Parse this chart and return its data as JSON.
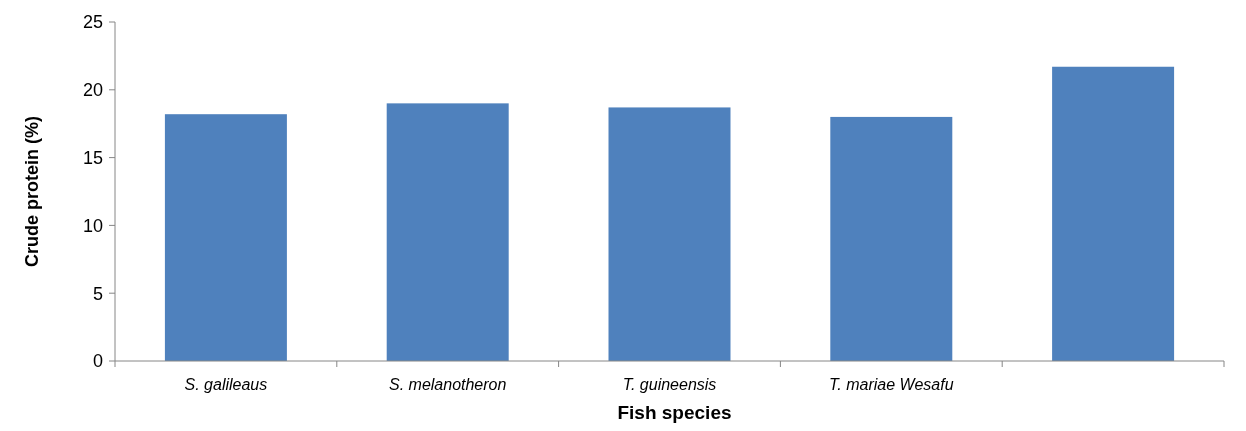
{
  "chart_data": {
    "type": "bar",
    "xlabel": "Fish species",
    "ylabel": "Crude protein (%)",
    "categories": [
      "S. galileaus",
      "S. melanotheron",
      "T. guineensis",
      "T. mariae Wesafu",
      null
    ],
    "values": [
      18.2,
      19.0,
      18.7,
      18.0,
      21.7
    ],
    "color": "#4f81bd",
    "ylim": [
      0,
      25
    ],
    "yticks": [
      0,
      5,
      10,
      15,
      20,
      25
    ],
    "grid": false
  }
}
